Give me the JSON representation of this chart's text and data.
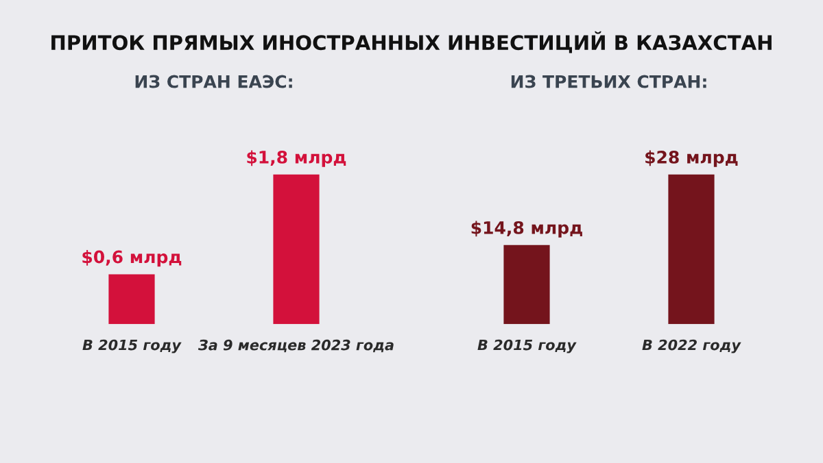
{
  "chart_data": [
    {
      "type": "bar",
      "title": "ПРИТОК ПРЯМЫХ ИНОСТРАННЫХ ИНВЕСТИЦИЙ В КАЗАХСТАН",
      "subtitle": "ИЗ СТРАН ЕАЭС:",
      "categories": [
        "В 2015 году",
        "За 9 месяцев 2023 года"
      ],
      "values": [
        0.6,
        1.8
      ],
      "value_labels": [
        "$0,6 млрд",
        "$1,8 млрд"
      ],
      "color": "#d3113b",
      "tick_labels": "x",
      "grid": false,
      "legend": false
    },
    {
      "type": "bar",
      "subtitle": "ИЗ ТРЕТЬИХ СТРАН:",
      "categories": [
        "В 2015 году",
        "В 2022 году"
      ],
      "values": [
        14.8,
        28
      ],
      "value_labels": [
        "$14,8 млрд",
        "$28 млрд"
      ],
      "color": "#74141c",
      "tick_labels": "x",
      "grid": false,
      "legend": false
    }
  ]
}
